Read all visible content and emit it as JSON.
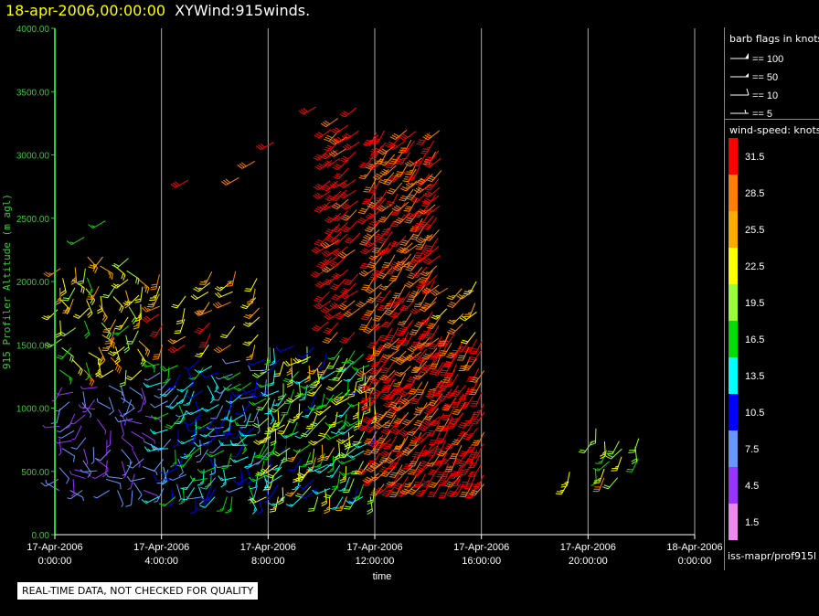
{
  "header": {
    "timestamp": "18-apr-2006,00:00:00",
    "product": "XYWind:915winds."
  },
  "chart_data": {
    "type": "scatter",
    "title": "XYWind:915winds.",
    "xlabel": "time",
    "ylabel": "915 Profiler Altitude (m agl)",
    "ylim": [
      0,
      4000
    ],
    "xlim_hours": [
      0,
      24
    ],
    "grid": "vertical lines every 4 hours",
    "y_ticks": [
      "0.00",
      "500.00",
      "1000.00",
      "1500.00",
      "2000.00",
      "2500.00",
      "3000.00",
      "3500.00",
      "4000.00"
    ],
    "x_ticks": [
      {
        "date": "17-Apr-2006",
        "time": "0:00:00"
      },
      {
        "date": "17-Apr-2006",
        "time": "4:00:00"
      },
      {
        "date": "17-Apr-2006",
        "time": "8:00:00"
      },
      {
        "date": "17-Apr-2006",
        "time": "12:00:00"
      },
      {
        "date": "17-Apr-2006",
        "time": "16:00:00"
      },
      {
        "date": "17-Apr-2006",
        "time": "20:00:00"
      },
      {
        "date": "18-Apr-2006",
        "time": "0:00:00"
      }
    ],
    "colorbar": {
      "title": "wind-speed: knots",
      "levels": [
        {
          "label": "31.5",
          "color": "#ff0000"
        },
        {
          "label": "28.5",
          "color": "#ff7f00"
        },
        {
          "label": "25.5",
          "color": "#ffaa00"
        },
        {
          "label": "22.5",
          "color": "#ffff00"
        },
        {
          "label": "19.5",
          "color": "#99ff33"
        },
        {
          "label": "16.5",
          "color": "#00dd00"
        },
        {
          "label": "13.5",
          "color": "#00ffff"
        },
        {
          "label": "10.5",
          "color": "#0000ff"
        },
        {
          "label": "7.5",
          "color": "#6699ff"
        },
        {
          "label": "4.5",
          "color": "#9933ff"
        },
        {
          "label": "1.5",
          "color": "#ee88ee"
        }
      ]
    },
    "barb_legend": {
      "title": "barb flags in knots",
      "items": [
        "== 100",
        "== 50",
        "== 10",
        "== 5"
      ]
    }
  },
  "footer": {
    "quality_note": "REAL-TIME DATA, NOT CHECKED FOR QUALITY",
    "source": "iss-mapr/prof915l"
  },
  "colors": {
    "axis": "#33cc33",
    "grid": "#aaaaaa",
    "timestamp": "#ffff00"
  }
}
